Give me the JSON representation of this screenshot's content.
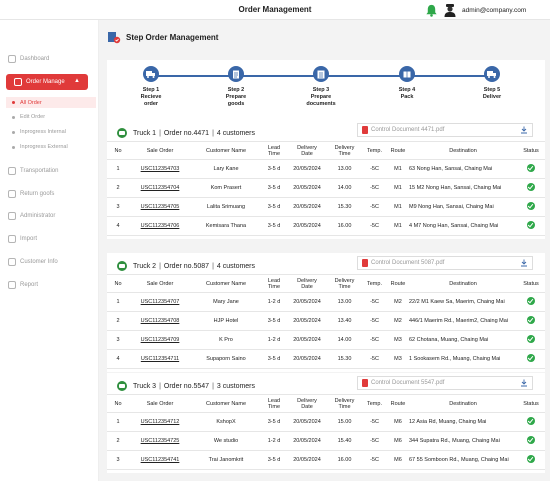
{
  "header": {
    "title": "Order Management",
    "email": "admin@company.com"
  },
  "sidebar": {
    "items": [
      {
        "label": "Dashboard"
      },
      {
        "label": "Order Manage"
      },
      {
        "label": "Transportation"
      },
      {
        "label": "Return goofs"
      },
      {
        "label": "Administrator"
      },
      {
        "label": "Import"
      },
      {
        "label": "Customer Info"
      },
      {
        "label": "Report"
      }
    ],
    "sub_items": [
      {
        "label": "All Order"
      },
      {
        "label": "Edit Order"
      },
      {
        "label": "Inprogress Internal"
      },
      {
        "label": "Inprogress External"
      }
    ]
  },
  "page": {
    "title": "Step Order Management"
  },
  "steps": [
    {
      "line1": "Step 1",
      "line2": "Recieve",
      "line3": "order"
    },
    {
      "line1": "Step 2",
      "line2": "Prepare",
      "line3": "goods"
    },
    {
      "line1": "Step 3",
      "line2": "Prepare",
      "line3": "documents"
    },
    {
      "line1": "Step 4",
      "line2": "Pack",
      "line3": ""
    },
    {
      "line1": "Step 5",
      "line2": "Deliver",
      "line3": ""
    }
  ],
  "table_headers": {
    "no": "No",
    "sale_order": "Sale Order",
    "customer": "Customer Name",
    "lead1": "Lead",
    "lead2": "Time",
    "ddate1": "Delivery",
    "ddate2": "Date",
    "dtime1": "Delivery",
    "dtime2": "Time",
    "temp": "Temp.",
    "route": "Route",
    "destination": "Destination",
    "status": "Status"
  },
  "trucks": [
    {
      "truck": "Truck 1",
      "order": "Order no.4471",
      "customers": "4 customers",
      "document": "Control Document 4471.pdf",
      "rows": [
        {
          "no": "1",
          "so": "USC112354703",
          "name": "Lary Kane",
          "lead": "3-5 d",
          "date": "20/05/2024",
          "time": "13.00",
          "temp": "-5C",
          "route": "M1",
          "dest": "63 Nong Han, Sansai, Chaing Mai"
        },
        {
          "no": "2",
          "so": "USC112354704",
          "name": "Kom Prasert",
          "lead": "3-5 d",
          "date": "20/05/2024",
          "time": "14.00",
          "temp": "-5C",
          "route": "M1",
          "dest": "15 M2 Nong Han, Sansai, Chaing Mai"
        },
        {
          "no": "3",
          "so": "USC112354705",
          "name": "Lalita Srimuang",
          "lead": "3-5 d",
          "date": "20/05/2024",
          "time": "15.30",
          "temp": "-5C",
          "route": "M1",
          "dest": "M9 Nong Han, Sansai, Chaing Mai"
        },
        {
          "no": "4",
          "so": "USC112354706",
          "name": "Kemisara Thana",
          "lead": "3-5 d",
          "date": "20/05/2024",
          "time": "16.00",
          "temp": "-5C",
          "route": "M1",
          "dest": "4 M7 Nong Han, Sansai, Chaing Mai"
        }
      ]
    },
    {
      "truck": "Truck 2",
      "order": "Order no.5087",
      "customers": "4 customers",
      "document": "Control Document 5087.pdf",
      "rows": [
        {
          "no": "1",
          "so": "USC112354707",
          "name": "Mary Jane",
          "lead": "1-2 d",
          "date": "20/05/2024",
          "time": "13.00",
          "temp": "-5C",
          "route": "M2",
          "dest": "22/2 M1 Kaew Sa, Maerim, Chaing Mai"
        },
        {
          "no": "2",
          "so": "USC112354708",
          "name": "HJP Hotel",
          "lead": "3-5 d",
          "date": "20/05/2024",
          "time": "13.40",
          "temp": "-5C",
          "route": "M2",
          "dest": "446/1 Maerim Rd., Maerim2, Chaing Mai"
        },
        {
          "no": "3",
          "so": "USC112354709",
          "name": "K Pro",
          "lead": "1-2 d",
          "date": "20/05/2024",
          "time": "14.00",
          "temp": "-5C",
          "route": "M3",
          "dest": "62 Chotana, Muang, Chaing Mai"
        },
        {
          "no": "4",
          "so": "USC112354711",
          "name": "Supaporn Saino",
          "lead": "3-5 d",
          "date": "20/05/2024",
          "time": "15.30",
          "temp": "-5C",
          "route": "M3",
          "dest": "1 Sookasem Rd., Muang, Chaing Mai"
        }
      ]
    },
    {
      "truck": "Truck 3",
      "order": "Order no.5547",
      "customers": "3 customers",
      "document": "Control Document 5547.pdf",
      "rows": [
        {
          "no": "1",
          "so": "USC112354712",
          "name": "KshopX",
          "lead": "3-5 d",
          "date": "20/05/2024",
          "time": "15.00",
          "temp": "-5C",
          "route": "M6",
          "dest": "12 Asia Rd, Muang, Chaing Mai"
        },
        {
          "no": "2",
          "so": "USC112354725",
          "name": "We studio",
          "lead": "1-2 d",
          "date": "20/05/2024",
          "time": "15.40",
          "temp": "-5C",
          "route": "M6",
          "dest": "344 Supatra Rd., Muang, Chaing Mai"
        },
        {
          "no": "3",
          "so": "USC112354741",
          "name": "Trai Janomkrit",
          "lead": "3-5 d",
          "date": "20/05/2024",
          "time": "16.00",
          "temp": "-5C",
          "route": "M6",
          "dest": "67 55 Somboon Rd., Muang, Chaing Mai"
        }
      ]
    }
  ]
}
